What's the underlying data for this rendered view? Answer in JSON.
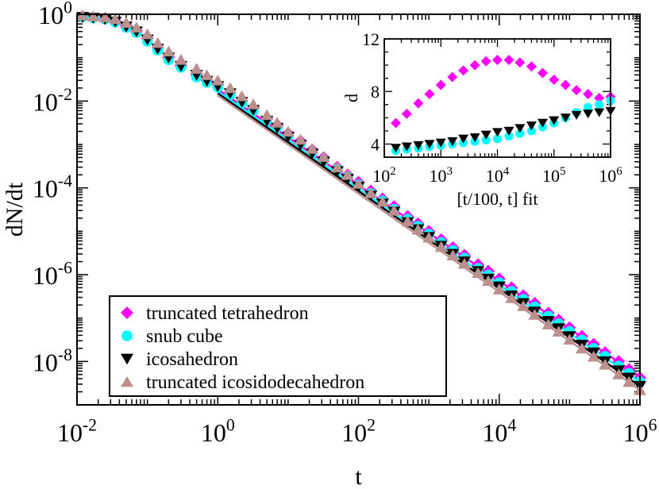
{
  "chart_data": {
    "type": "scatter",
    "xlabel": "t",
    "ylabel": "dN/dt",
    "xscale": "log",
    "yscale": "log",
    "xlim": [
      0.01,
      1000000
    ],
    "ylim": [
      1e-09,
      1
    ],
    "x_ticks": [
      {
        "base": "10",
        "exp": "-2"
      },
      {
        "base": "10",
        "exp": "0"
      },
      {
        "base": "10",
        "exp": "2"
      },
      {
        "base": "10",
        "exp": "4"
      },
      {
        "base": "10",
        "exp": "6"
      }
    ],
    "y_ticks": [
      {
        "base": "10",
        "exp": "0"
      },
      {
        "base": "10",
        "exp": "-2"
      },
      {
        "base": "10",
        "exp": "-4"
      },
      {
        "base": "10",
        "exp": "-6"
      },
      {
        "base": "10",
        "exp": "-8"
      }
    ],
    "legend": {
      "position": "bottom-left"
    },
    "series": [
      {
        "name": "truncated tetrahedron",
        "marker": "diamond",
        "color": "#ff00ff",
        "fit_line": {
          "x": [
            1,
            1000000
          ],
          "y": [
            0.0185,
            4.5e-09
          ]
        },
        "points": [
          [
            0.012,
            0.9
          ],
          [
            0.017,
            0.85
          ],
          [
            0.025,
            0.8
          ],
          [
            0.035,
            0.7
          ],
          [
            0.05,
            0.55
          ],
          [
            0.07,
            0.42
          ],
          [
            0.1,
            0.28
          ],
          [
            0.14,
            0.17
          ],
          [
            0.2,
            0.1
          ],
          [
            0.3,
            0.065
          ],
          [
            0.5,
            0.04
          ],
          [
            0.7,
            0.03
          ],
          [
            1,
            0.024
          ],
          [
            1.5,
            0.016
          ],
          [
            2.2,
            0.01
          ],
          [
            3.2,
            0.007
          ],
          [
            5,
            0.004
          ],
          [
            7,
            0.0028
          ],
          [
            10,
            0.0018
          ],
          [
            15,
            0.0012
          ],
          [
            22,
            0.00075
          ],
          [
            32,
            0.0005
          ],
          [
            50,
            0.0003
          ],
          [
            70,
            0.0002
          ],
          [
            100,
            0.000135
          ],
          [
            150,
            8.5e-05
          ],
          [
            220,
            5.6e-05
          ],
          [
            320,
            3.7e-05
          ],
          [
            500,
            2.2e-05
          ],
          [
            700,
            1.5e-05
          ],
          [
            1000,
            1e-05
          ],
          [
            1500,
            6.4e-06
          ],
          [
            2200,
            4.2e-06
          ],
          [
            3200,
            2.8e-06
          ],
          [
            5000,
            1.7e-06
          ],
          [
            7000,
            1.2e-06
          ],
          [
            10000,
            8e-07
          ],
          [
            15000,
            5e-07
          ],
          [
            22000,
            3.3e-07
          ],
          [
            32000,
            2.2e-07
          ],
          [
            50000,
            1.3e-07
          ],
          [
            70000,
            9e-08
          ],
          [
            100000,
            6e-08
          ],
          [
            150000,
            3.8e-08
          ],
          [
            220000,
            2.5e-08
          ],
          [
            320000,
            1.6e-08
          ],
          [
            500000,
            1e-08
          ],
          [
            700000,
            6.5e-09
          ],
          [
            1000000,
            4.2e-09
          ]
        ]
      },
      {
        "name": "snub cube",
        "marker": "circle",
        "color": "#00ffff",
        "fit_line": {
          "x": [
            1,
            1000000
          ],
          "y": [
            0.0165,
            3.4e-09
          ]
        },
        "points": [
          [
            0.012,
            0.88
          ],
          [
            0.017,
            0.83
          ],
          [
            0.025,
            0.78
          ],
          [
            0.035,
            0.66
          ],
          [
            0.05,
            0.5
          ],
          [
            0.07,
            0.38
          ],
          [
            0.1,
            0.24
          ],
          [
            0.14,
            0.15
          ],
          [
            0.2,
            0.09
          ],
          [
            0.3,
            0.06
          ],
          [
            0.5,
            0.036
          ],
          [
            0.7,
            0.027
          ],
          [
            1,
            0.021
          ],
          [
            1.5,
            0.014
          ],
          [
            2.2,
            0.009
          ],
          [
            3.2,
            0.006
          ],
          [
            5,
            0.0036
          ],
          [
            7,
            0.0025
          ],
          [
            10,
            0.0016
          ],
          [
            15,
            0.00105
          ],
          [
            22,
            0.00066
          ],
          [
            32,
            0.00044
          ],
          [
            50,
            0.00027
          ],
          [
            70,
            0.00018
          ],
          [
            100,
            0.000118
          ],
          [
            150,
            7.5e-05
          ],
          [
            220,
            5e-05
          ],
          [
            320,
            3.2e-05
          ],
          [
            500,
            1.9e-05
          ],
          [
            700,
            1.3e-05
          ],
          [
            1000,
            8.6e-06
          ],
          [
            1500,
            5.5e-06
          ],
          [
            2200,
            3.6e-06
          ],
          [
            3200,
            2.4e-06
          ],
          [
            5000,
            1.4e-06
          ],
          [
            7000,
            9.8e-07
          ],
          [
            10000,
            6.5e-07
          ],
          [
            15000,
            4.1e-07
          ],
          [
            22000,
            2.7e-07
          ],
          [
            32000,
            1.8e-07
          ],
          [
            50000,
            1.1e-07
          ],
          [
            70000,
            7.4e-08
          ],
          [
            100000,
            4.9e-08
          ],
          [
            150000,
            3.1e-08
          ],
          [
            220000,
            2e-08
          ],
          [
            320000,
            1.3e-08
          ],
          [
            500000,
            7.8e-09
          ],
          [
            700000,
            5.3e-09
          ],
          [
            1000000,
            3.4e-09
          ]
        ]
      },
      {
        "name": "icosahedron",
        "marker": "triangle-down",
        "color": "#000000",
        "fit_line": {
          "x": [
            1,
            1000000
          ],
          "y": [
            0.015,
            2.7e-09
          ]
        },
        "points": [
          [
            0.012,
            0.86
          ],
          [
            0.017,
            0.82
          ],
          [
            0.025,
            0.77
          ],
          [
            0.035,
            0.67
          ],
          [
            0.05,
            0.52
          ],
          [
            0.07,
            0.4
          ],
          [
            0.1,
            0.26
          ],
          [
            0.14,
            0.16
          ],
          [
            0.2,
            0.1
          ],
          [
            0.3,
            0.064
          ],
          [
            0.5,
            0.04
          ],
          [
            0.7,
            0.029
          ],
          [
            1,
            0.022
          ],
          [
            1.5,
            0.015
          ],
          [
            2.2,
            0.0095
          ],
          [
            3.2,
            0.0062
          ],
          [
            5,
            0.0035
          ],
          [
            7,
            0.0024
          ],
          [
            10,
            0.0015
          ],
          [
            15,
            0.00098
          ],
          [
            22,
            0.00062
          ],
          [
            32,
            0.0004
          ],
          [
            50,
            0.00024
          ],
          [
            70,
            0.00016
          ],
          [
            100,
            0.000105
          ],
          [
            150,
            6.6e-05
          ],
          [
            220,
            4.3e-05
          ],
          [
            320,
            2.8e-05
          ],
          [
            500,
            1.6e-05
          ],
          [
            700,
            1.1e-05
          ],
          [
            1000,
            7.3e-06
          ],
          [
            1500,
            4.6e-06
          ],
          [
            2200,
            3e-06
          ],
          [
            3200,
            2e-06
          ],
          [
            5000,
            1.2e-06
          ],
          [
            7000,
            8e-07
          ],
          [
            10000,
            5.3e-07
          ],
          [
            15000,
            3.3e-07
          ],
          [
            22000,
            2.2e-07
          ],
          [
            32000,
            1.4e-07
          ],
          [
            50000,
            8.5e-08
          ],
          [
            70000,
            5.8e-08
          ],
          [
            100000,
            3.8e-08
          ],
          [
            150000,
            2.4e-08
          ],
          [
            220000,
            1.6e-08
          ],
          [
            320000,
            1e-08
          ],
          [
            500000,
            6.2e-09
          ],
          [
            700000,
            4.2e-09
          ],
          [
            1000000,
            2.7e-09
          ]
        ]
      },
      {
        "name": "truncated icosidodecahedron",
        "marker": "triangle-up",
        "color": "#bc8f8f",
        "fit_line": {
          "x": [
            1,
            1000000
          ],
          "y": [
            0.0135,
            2.2e-09
          ]
        },
        "points": [
          [
            0.012,
            0.95
          ],
          [
            0.017,
            0.9
          ],
          [
            0.025,
            0.86
          ],
          [
            0.035,
            0.78
          ],
          [
            0.05,
            0.64
          ],
          [
            0.07,
            0.5
          ],
          [
            0.1,
            0.35
          ],
          [
            0.14,
            0.22
          ],
          [
            0.2,
            0.14
          ],
          [
            0.3,
            0.09
          ],
          [
            0.5,
            0.056
          ],
          [
            0.7,
            0.04
          ],
          [
            1,
            0.03
          ],
          [
            1.5,
            0.02
          ],
          [
            2.2,
            0.013
          ],
          [
            3.2,
            0.0085
          ],
          [
            5,
            0.0048
          ],
          [
            7,
            0.0032
          ],
          [
            10,
            0.002
          ],
          [
            15,
            0.0013
          ],
          [
            22,
            0.0008
          ],
          [
            32,
            0.00052
          ],
          [
            50,
            0.0003
          ],
          [
            70,
            0.0002
          ],
          [
            100,
            0.000125
          ],
          [
            150,
            7.6e-05
          ],
          [
            220,
            4.8e-05
          ],
          [
            320,
            3e-05
          ],
          [
            500,
            1.7e-05
          ],
          [
            700,
            1.1e-05
          ],
          [
            1000,
            7.2e-06
          ],
          [
            1500,
            4.4e-06
          ],
          [
            2200,
            2.8e-06
          ],
          [
            3200,
            1.8e-06
          ],
          [
            5000,
            1.1e-06
          ],
          [
            7000,
            7.2e-07
          ],
          [
            10000,
            4.6e-07
          ],
          [
            15000,
            2.9e-07
          ],
          [
            22000,
            1.9e-07
          ],
          [
            32000,
            1.2e-07
          ],
          [
            50000,
            7.2e-08
          ],
          [
            70000,
            4.9e-08
          ],
          [
            100000,
            3.2e-08
          ],
          [
            150000,
            2e-08
          ],
          [
            220000,
            1.3e-08
          ],
          [
            320000,
            8.5e-09
          ],
          [
            500000,
            5.1e-09
          ],
          [
            700000,
            3.4e-09
          ],
          [
            1000000,
            2.2e-09
          ]
        ]
      }
    ],
    "inset": {
      "xlabel": "[t/100, t] fit",
      "ylabel": "d",
      "xscale": "log",
      "xlim": [
        100,
        1000000
      ],
      "ylim": [
        3,
        12
      ],
      "x_ticks": [
        {
          "base": "10",
          "exp": "2"
        },
        {
          "base": "10",
          "exp": "3"
        },
        {
          "base": "10",
          "exp": "4"
        },
        {
          "base": "10",
          "exp": "5"
        },
        {
          "base": "10",
          "exp": "6"
        }
      ],
      "y_ticks": [
        "4",
        "8",
        "12"
      ],
      "series": [
        {
          "name": "truncated tetrahedron",
          "marker": "diamond",
          "color": "#ff00ff",
          "points": [
            [
              160,
              5.6
            ],
            [
              250,
              6.3
            ],
            [
              400,
              7.1
            ],
            [
              630,
              7.8
            ],
            [
              1000,
              8.5
            ],
            [
              1600,
              9.1
            ],
            [
              2500,
              9.6
            ],
            [
              4000,
              10.0
            ],
            [
              6300,
              10.3
            ],
            [
              10000,
              10.4
            ],
            [
              16000,
              10.4
            ],
            [
              25000,
              10.2
            ],
            [
              40000,
              9.9
            ],
            [
              63000,
              9.4
            ],
            [
              100000,
              8.9
            ],
            [
              160000,
              8.5
            ],
            [
              250000,
              8.1
            ],
            [
              400000,
              7.8
            ],
            [
              630000,
              7.5
            ],
            [
              1000000,
              7.6
            ]
          ]
        },
        {
          "name": "snub cube",
          "marker": "circle",
          "color": "#00ffff",
          "points": [
            [
              160,
              3.5
            ],
            [
              250,
              3.6
            ],
            [
              400,
              3.7
            ],
            [
              630,
              3.8
            ],
            [
              1000,
              3.9
            ],
            [
              1600,
              4.0
            ],
            [
              2500,
              4.1
            ],
            [
              4000,
              4.2
            ],
            [
              6300,
              4.3
            ],
            [
              10000,
              4.4
            ],
            [
              16000,
              4.6
            ],
            [
              25000,
              4.8
            ],
            [
              40000,
              5.0
            ],
            [
              63000,
              5.3
            ],
            [
              100000,
              5.6
            ],
            [
              160000,
              6.0
            ],
            [
              250000,
              6.4
            ],
            [
              400000,
              6.8
            ],
            [
              630000,
              7.0
            ],
            [
              1000000,
              7.3
            ]
          ]
        },
        {
          "name": "icosahedron",
          "marker": "triangle-down",
          "color": "#000000",
          "points": [
            [
              160,
              3.7
            ],
            [
              250,
              3.8
            ],
            [
              400,
              3.9
            ],
            [
              630,
              4.0
            ],
            [
              1000,
              4.1
            ],
            [
              1600,
              4.2
            ],
            [
              2500,
              4.4
            ],
            [
              4000,
              4.5
            ],
            [
              6300,
              4.7
            ],
            [
              10000,
              4.9
            ],
            [
              16000,
              5.0
            ],
            [
              25000,
              5.2
            ],
            [
              40000,
              5.4
            ],
            [
              63000,
              5.6
            ],
            [
              100000,
              5.8
            ],
            [
              160000,
              6.0
            ],
            [
              250000,
              6.2
            ],
            [
              400000,
              6.3
            ],
            [
              630000,
              6.4
            ],
            [
              1000000,
              6.5
            ]
          ]
        }
      ]
    }
  }
}
